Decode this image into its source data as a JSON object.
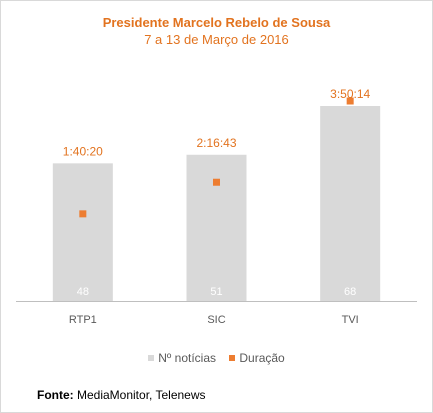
{
  "chart_data": {
    "type": "bar",
    "title": "Presidente Marcelo Rebelo de Sousa",
    "subtitle": "7 a 13 de Março de 2016",
    "categories": [
      "RTP1",
      "SIC",
      "TVI"
    ],
    "series": [
      {
        "name": "Nº notícias",
        "type": "bar",
        "values": [
          48,
          51,
          68
        ],
        "color": "#d9d9d9",
        "label_color": "#ffffff"
      },
      {
        "name": "Duração",
        "type": "marker",
        "values": [
          "1:40:20",
          "2:16:43",
          "3:50:14"
        ],
        "seconds": [
          6020,
          8203,
          13814
        ],
        "color": "#ed7d31"
      }
    ],
    "legend_position": "bottom",
    "grid": false
  },
  "source": {
    "label": "Fonte:",
    "text": " MediaMonitor, Telenews"
  },
  "colors": {
    "accent": "#e2731f",
    "bar": "#d9d9d9",
    "marker": "#ed7d31",
    "axis": "#bfbfbf"
  }
}
